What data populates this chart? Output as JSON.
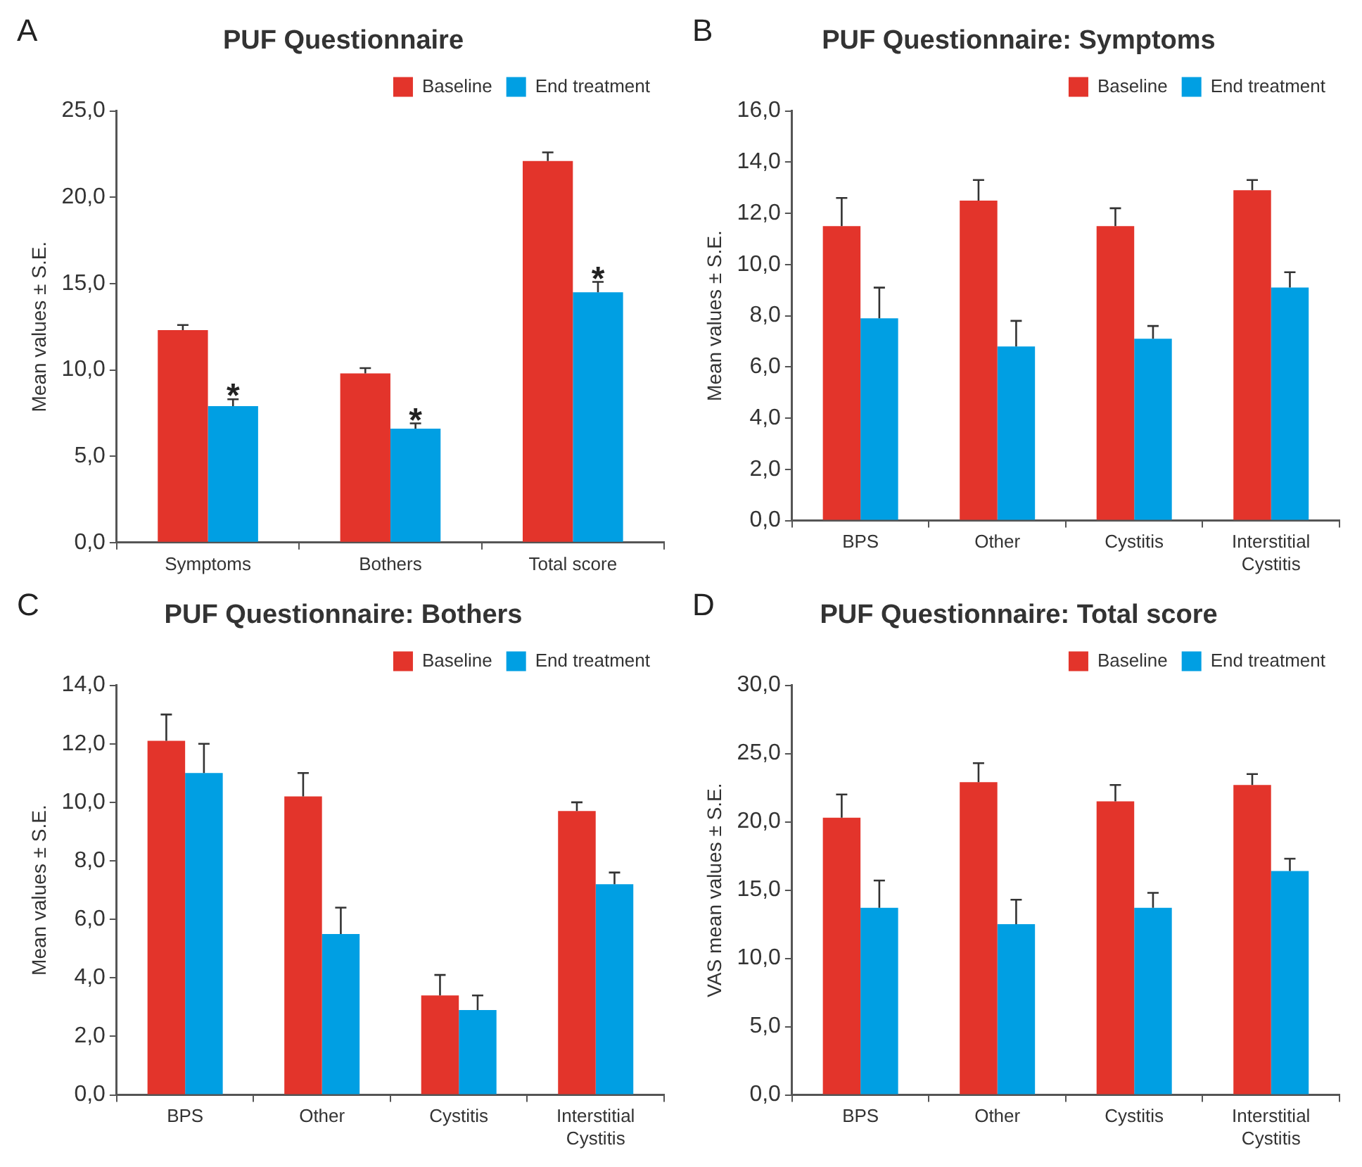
{
  "chart_data": [
    {
      "type": "bar",
      "title": "PUF Questionnaire",
      "ylabel": "Mean values ± S.E.",
      "categories": [
        "Symptoms",
        "Bothers",
        "Total score"
      ],
      "legend": "top right",
      "series": [
        {
          "name": "Baseline",
          "color": "#e3342b",
          "values": [
            12.3,
            9.8,
            22.1
          ],
          "errors": [
            [
              12.3,
              12.6
            ],
            [
              9.8,
              10.1
            ],
            [
              22.1,
              22.6
            ]
          ]
        },
        {
          "name": "End treatment",
          "color": "#009fe3",
          "values": [
            7.9,
            6.6,
            14.5
          ],
          "errors": [
            [
              7.9,
              8.3
            ],
            [
              6.6,
              6.9
            ],
            [
              14.5,
              15.1
            ]
          ]
        }
      ],
      "ylim": [
        0,
        25
      ],
      "yticks": [
        {
          "value": 0,
          "label": "0,0"
        },
        {
          "value": 5,
          "label": "5,0"
        },
        {
          "value": 10,
          "label": "10,0"
        },
        {
          "value": 15,
          "label": "15,0"
        },
        {
          "value": 20,
          "label": "20,0"
        },
        {
          "value": 25,
          "label": "25,0"
        }
      ],
      "annotations": [
        "A",
        {
          "text": "*",
          "x": "Symptoms",
          "y": 8.3
        },
        {
          "text": "*",
          "x": "Bothers",
          "y": 6.9
        },
        {
          "text": "*",
          "x": "Total score",
          "y": 15.1
        }
      ]
    },
    {
      "type": "bar",
      "title": "PUF Questionnaire: Symptoms",
      "ylabel": "Mean values ± S.E.",
      "categories": [
        "BPS",
        "Other",
        "Cystitis",
        "Interstitial Cystitis"
      ],
      "legend": "top right",
      "series": [
        {
          "name": "Baseline",
          "color": "#e3342b",
          "values": [
            11.5,
            12.5,
            11.5,
            12.9
          ],
          "errors": [
            [
              11.5,
              12.6
            ],
            [
              12.5,
              13.3
            ],
            [
              11.5,
              12.2
            ],
            [
              12.9,
              13.3
            ]
          ]
        },
        {
          "name": "End treatment",
          "color": "#009fe3",
          "values": [
            7.9,
            6.8,
            7.1,
            9.1
          ],
          "errors": [
            [
              7.9,
              9.1
            ],
            [
              6.8,
              7.8
            ],
            [
              7.1,
              7.6
            ],
            [
              9.1,
              9.7
            ]
          ]
        }
      ],
      "ylim": [
        0,
        16
      ],
      "yticks": [
        {
          "value": 0,
          "label": "0,0"
        },
        {
          "value": 2,
          "label": "2,0"
        },
        {
          "value": 4,
          "label": "4,0"
        },
        {
          "value": 6,
          "label": "6,0"
        },
        {
          "value": 8,
          "label": "8,0"
        },
        {
          "value": 10,
          "label": "10,0"
        },
        {
          "value": 12,
          "label": "12,0"
        },
        {
          "value": 14,
          "label": "14,0"
        },
        {
          "value": 16,
          "label": "16,0"
        }
      ],
      "annotations": [
        "B"
      ]
    },
    {
      "type": "bar",
      "title": "PUF Questionnaire: Bothers",
      "ylabel": "Mean values ± S.E.",
      "categories": [
        "BPS",
        "Other",
        "Cystitis",
        "Interstitial Cystitis"
      ],
      "legend": "top right",
      "series": [
        {
          "name": "Baseline",
          "color": "#e3342b",
          "values": [
            12.1,
            10.2,
            3.4,
            9.7
          ],
          "errors": [
            [
              12.1,
              13.0
            ],
            [
              10.2,
              11.0
            ],
            [
              3.4,
              4.1
            ],
            [
              9.7,
              10.0
            ]
          ]
        },
        {
          "name": "End treatment",
          "color": "#009fe3",
          "values": [
            11.0,
            5.5,
            2.9,
            7.2
          ],
          "errors": [
            [
              11.0,
              12.0
            ],
            [
              5.5,
              6.4
            ],
            [
              2.9,
              3.4
            ],
            [
              7.2,
              7.6
            ]
          ]
        }
      ],
      "ylim": [
        0,
        14
      ],
      "yticks": [
        {
          "value": 0,
          "label": "0,0"
        },
        {
          "value": 2,
          "label": "2,0"
        },
        {
          "value": 4,
          "label": "4,0"
        },
        {
          "value": 6,
          "label": "6,0"
        },
        {
          "value": 8,
          "label": "8,0"
        },
        {
          "value": 10,
          "label": "10,0"
        },
        {
          "value": 12,
          "label": "12,0"
        },
        {
          "value": 14,
          "label": "14,0"
        }
      ],
      "annotations": [
        "C"
      ]
    },
    {
      "type": "bar",
      "title": "PUF Questionnaire: Total score",
      "ylabel": "VAS mean values ± S.E.",
      "categories": [
        "BPS",
        "Other",
        "Cystitis",
        "Interstitial Cystitis"
      ],
      "legend": "top right",
      "series": [
        {
          "name": "Baseline",
          "color": "#e3342b",
          "values": [
            20.3,
            22.9,
            21.5,
            22.7
          ],
          "errors": [
            [
              20.3,
              22.0
            ],
            [
              22.9,
              24.3
            ],
            [
              21.5,
              22.7
            ],
            [
              22.7,
              23.5
            ]
          ]
        },
        {
          "name": "End treatment",
          "color": "#009fe3",
          "values": [
            13.7,
            12.5,
            13.7,
            16.4
          ],
          "errors": [
            [
              13.7,
              15.7
            ],
            [
              12.5,
              14.3
            ],
            [
              13.7,
              14.8
            ],
            [
              16.4,
              17.3
            ]
          ]
        }
      ],
      "ylim": [
        0,
        30
      ],
      "yticks": [
        {
          "value": 0,
          "label": "0,0"
        },
        {
          "value": 5,
          "label": "5,0"
        },
        {
          "value": 10,
          "label": "10,0"
        },
        {
          "value": 15,
          "label": "15,0"
        },
        {
          "value": 20,
          "label": "20,0"
        },
        {
          "value": 25,
          "label": "25,0"
        },
        {
          "value": 30,
          "label": "30,0"
        }
      ],
      "annotations": [
        "D"
      ]
    }
  ]
}
